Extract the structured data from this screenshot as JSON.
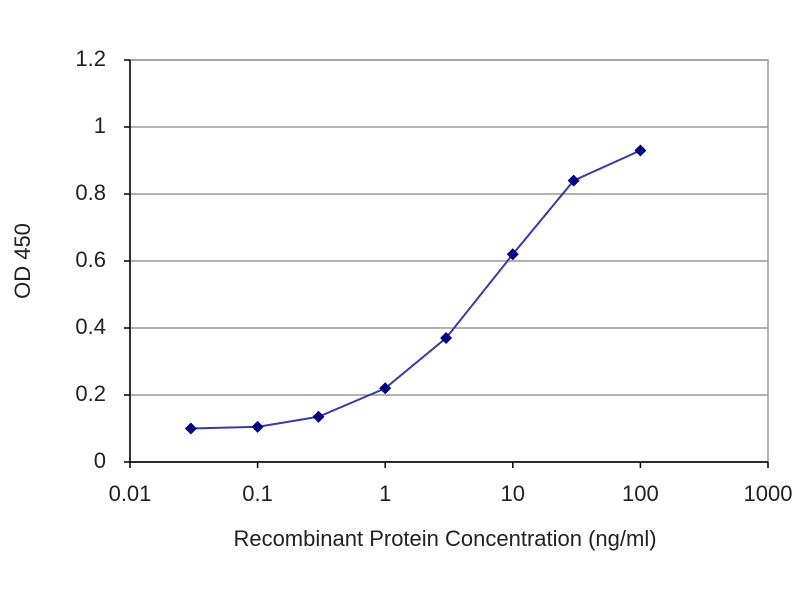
{
  "chart_data": {
    "type": "line",
    "xlabel": "Recombinant Protein Concentration (ng/ml)",
    "ylabel": "OD 450",
    "x": [
      0.03,
      0.1,
      0.3,
      1,
      3,
      10,
      30,
      100
    ],
    "series": [
      {
        "color": "#3a3aa8",
        "marker_color": "#000080",
        "values": [
          0.1,
          0.105,
          0.135,
          0.22,
          0.37,
          0.62,
          0.84,
          0.93
        ]
      }
    ],
    "xscale": "log",
    "xlim": [
      0.01,
      1000
    ],
    "xticks": [
      0.01,
      0.1,
      1,
      10,
      100,
      1000
    ],
    "ylim": [
      0,
      1.2
    ],
    "yticks": [
      0,
      0.2,
      0.4,
      0.6,
      0.8,
      1,
      1.2
    ],
    "grid": true
  }
}
